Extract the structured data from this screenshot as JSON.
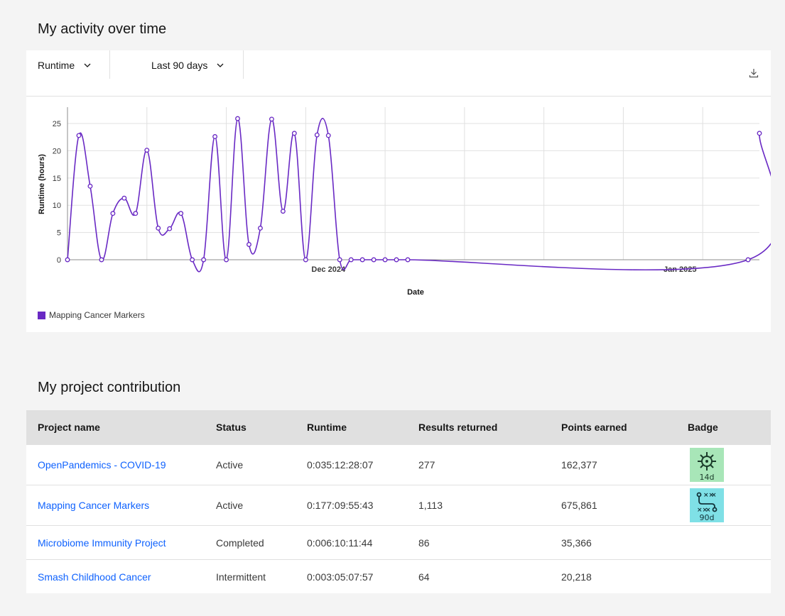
{
  "activity": {
    "title": "My activity over time",
    "metric_dropdown": "Runtime",
    "range_dropdown": "Last 90 days",
    "download_icon": "download-icon"
  },
  "chart_data": {
    "type": "line",
    "xlabel": "Date",
    "ylabel": "Runtime (hours)",
    "ylim": [
      0,
      28
    ],
    "yticks": [
      0,
      5,
      10,
      15,
      20,
      25
    ],
    "xticks": [
      "Dec 2024",
      "Jan 2025"
    ],
    "grid": true,
    "legend": "bottom-left",
    "color": "#6929c4",
    "series": [
      {
        "name": "Mapping Cancer Markers",
        "x": [
          "2024-11-08",
          "2024-11-09",
          "2024-11-10",
          "2024-11-11",
          "2024-11-12",
          "2024-11-13",
          "2024-11-14",
          "2024-11-15",
          "2024-11-16",
          "2024-11-17",
          "2024-11-18",
          "2024-11-19",
          "2024-11-20",
          "2024-11-21",
          "2024-11-22",
          "2024-11-23",
          "2024-11-24",
          "2024-11-25",
          "2024-11-26",
          "2024-11-27",
          "2024-11-28",
          "2024-11-29",
          "2024-11-30",
          "2024-12-01",
          "2024-12-02",
          "2024-12-03",
          "2024-12-04",
          "2024-12-05",
          "2024-12-06",
          "2024-12-07",
          "2024-12-08",
          "2025-01-07",
          "2025-01-08"
        ],
        "values": [
          0,
          22.8,
          13.5,
          0,
          8.5,
          11.3,
          8.5,
          20.1,
          5.8,
          5.7,
          8.5,
          0,
          0,
          22.6,
          0,
          25.9,
          2.8,
          5.8,
          25.8,
          8.9,
          23.2,
          0,
          22.9,
          22.8,
          0,
          0,
          0,
          0,
          0,
          0,
          0,
          0,
          23.2
        ]
      }
    ]
  },
  "contribution": {
    "title": "My project contribution",
    "columns": [
      "Project name",
      "Status",
      "Runtime",
      "Results returned",
      "Points earned",
      "Badge"
    ],
    "rows": [
      {
        "name": "OpenPandemics - COVID-19",
        "status": "Active",
        "runtime": "0:035:12:28:07",
        "results": "277",
        "points": "162,377",
        "badge": "14d",
        "badge_color": "#a8e6b8",
        "badge_icon": "virus-icon"
      },
      {
        "name": "Mapping Cancer Markers",
        "status": "Active",
        "runtime": "0:177:09:55:43",
        "results": "1,113",
        "points": "675,861",
        "badge": "90d",
        "badge_color": "#7fe0e6",
        "badge_icon": "marker-pattern-icon"
      },
      {
        "name": "Microbiome Immunity Project",
        "status": "Completed",
        "runtime": "0:006:10:11:44",
        "results": "86",
        "points": "35,366"
      },
      {
        "name": "Smash Childhood Cancer",
        "status": "Intermittent",
        "runtime": "0:003:05:07:57",
        "results": "64",
        "points": "20,218"
      }
    ]
  }
}
